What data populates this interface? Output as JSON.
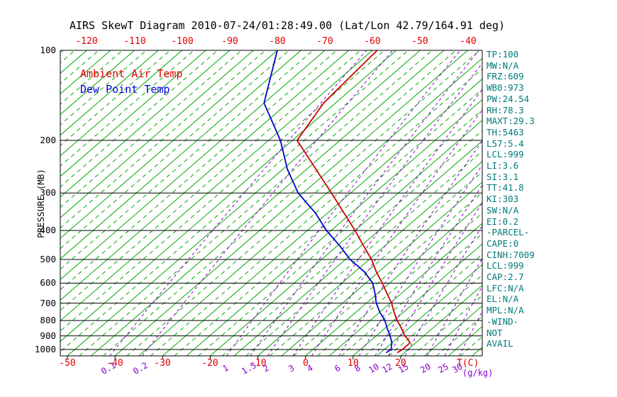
{
  "title": "AIRS SkewT Diagram 2010-07-24/01:28:49.00 (Lat/Lon 42.79/164.91 deg)",
  "legend": {
    "temp": "Ambient Air Temp",
    "dewpoint": "Dew Point Temp"
  },
  "axes": {
    "pressure_label": "PRESSURE (MB)",
    "temp_unit_label": "T(C)",
    "mixing_unit_label": "(g/kg)",
    "pressure_ticks": [
      100,
      200,
      300,
      400,
      500,
      600,
      700,
      800,
      900,
      1000
    ],
    "top_temp_ticks": [
      -120,
      -110,
      -100,
      -90,
      -80,
      -70,
      -60,
      -50,
      -40
    ],
    "bottom_temp_ticks": [
      -50,
      -40,
      -30,
      -20,
      -10,
      0,
      10,
      20
    ],
    "mixing_ratio_ticks": [
      0.1,
      0.2,
      1,
      1.5,
      2,
      3,
      4,
      6,
      8,
      10,
      12,
      15,
      20,
      25,
      30
    ]
  },
  "stats": [
    "TP:100",
    "MW:N/A",
    "FRZ:609",
    "WB0:973",
    "PW:24.54",
    "RH:78.3",
    "MAXT:29.3",
    "TH:5463",
    "L57:5.4",
    "LCL:999",
    "LI:3.6",
    "SI:3.1",
    "TT:41.8",
    "KI:303",
    "SW:N/A",
    "EI:0.2",
    "-PARCEL-",
    "CAPE:0",
    "CINH:7009",
    "LCL:999",
    "CAP:2.7",
    "LFC:N/A",
    "EL:N/A",
    "MPL:N/A",
    "-WIND-",
    "NOT",
    "AVAIL"
  ],
  "colors": {
    "isotherm": "#00a800",
    "mixing_ratio": "#8800cc",
    "temp_curve": "#cc0000",
    "dewpoint_curve": "#0000cc",
    "stats_text": "#007a7a",
    "axis_red": "#dd0000",
    "frame": "#000000"
  },
  "chart_data": {
    "type": "line",
    "title": "AIRS SkewT Diagram 2010-07-24/01:28:49.00 (Lat/Lon 42.79/164.91 deg)",
    "x_axis_label": "T(C)",
    "y_axis_label": "PRESSURE (MB)",
    "y_scale": "log",
    "skewed": true,
    "pressure_range": [
      100,
      1050
    ],
    "bottom_temp_range": [
      -50,
      20
    ],
    "top_temp_range": [
      -120,
      -40
    ],
    "isotherms": {
      "min": -130,
      "max": 45,
      "step": 5
    },
    "isotherm_dashed": {
      "min": -127.5,
      "max": 42.5,
      "step": 5
    },
    "mixing_ratio_lines": [
      0.1,
      0.2,
      1,
      1.5,
      2,
      3,
      4,
      6,
      8,
      10,
      12,
      15,
      20,
      25,
      30
    ],
    "series": [
      {
        "name": "Ambient Air Temp",
        "color": "#cc0000",
        "pressure": [
          1025,
          1000,
          950,
          925,
          900,
          850,
          800,
          750,
          700,
          650,
          600,
          550,
          500,
          450,
          400,
          350,
          300,
          250,
          200,
          150,
          100
        ],
        "temperature_c": [
          18.5,
          18.8,
          18.8,
          17.5,
          16.0,
          13.5,
          10.7,
          8.0,
          5.3,
          2.0,
          -1.5,
          -5.5,
          -9.5,
          -14.5,
          -20.0,
          -26.5,
          -34.0,
          -43.0,
          -54.0,
          -57.5,
          -59.0
        ]
      },
      {
        "name": "Dew Point Temp",
        "color": "#0000cc",
        "pressure": [
          1025,
          1000,
          950,
          900,
          850,
          800,
          750,
          700,
          650,
          600,
          550,
          500,
          450,
          400,
          350,
          300,
          250,
          200,
          150,
          100
        ],
        "temperature_c": [
          16.2,
          16.4,
          15.0,
          12.9,
          10.5,
          8.1,
          5.0,
          2.1,
          -0.5,
          -3.5,
          -8.0,
          -14.0,
          -19.5,
          -26.0,
          -32.5,
          -41.0,
          -49.0,
          -57.5,
          -70.0,
          -80.0
        ]
      }
    ]
  }
}
